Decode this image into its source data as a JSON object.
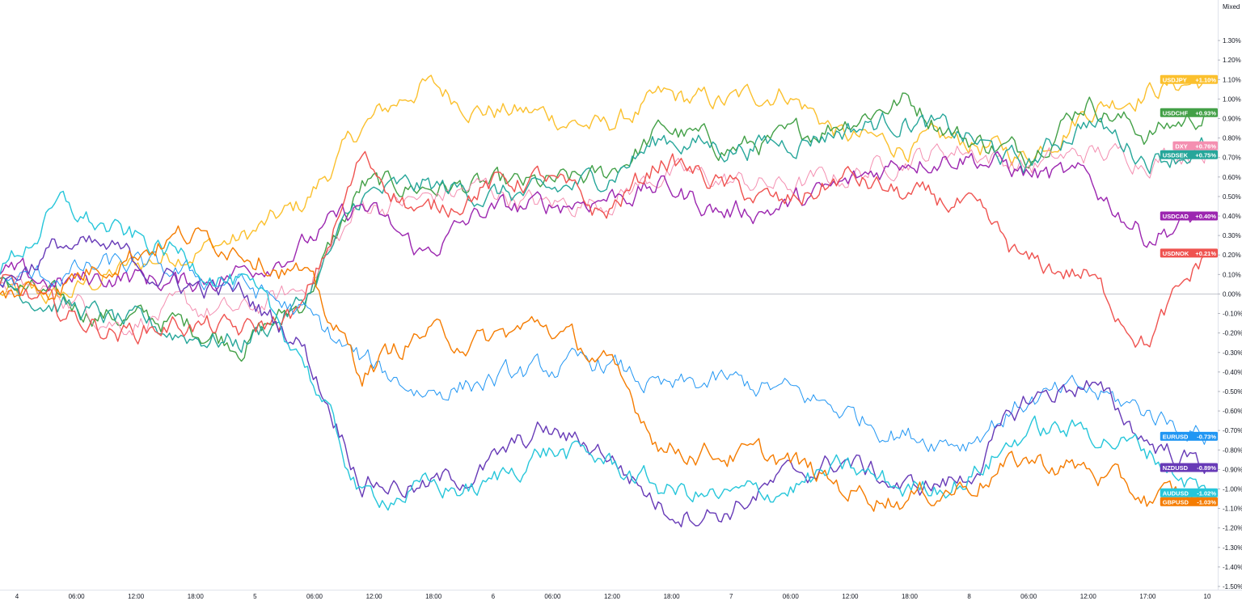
{
  "scale_mode": "Mixed",
  "chart_data": {
    "type": "line",
    "title": "",
    "xlabel": "",
    "ylabel": "",
    "ylim": [
      -1.5,
      1.4
    ],
    "y_ticks": [
      "1.30%",
      "1.20%",
      "1.10%",
      "1.00%",
      "0.90%",
      "0.80%",
      "0.70%",
      "0.60%",
      "0.50%",
      "0.40%",
      "0.30%",
      "0.20%",
      "0.10%",
      "0.00%",
      "-0.10%",
      "-0.20%",
      "-0.30%",
      "-0.40%",
      "-0.50%",
      "-0.60%",
      "-0.70%",
      "-0.80%",
      "-0.90%",
      "-1.00%",
      "-1.10%",
      "-1.20%",
      "-1.30%",
      "-1.40%",
      "-1.50%"
    ],
    "x_ticks": [
      "4",
      "06:00",
      "12:00",
      "18:00",
      "5",
      "06:00",
      "12:00",
      "18:00",
      "6",
      "06:00",
      "12:00",
      "18:00",
      "7",
      "06:00",
      "12:00",
      "18:00",
      "8",
      "06:00",
      "12:00",
      "17:00",
      "10"
    ],
    "zero_line": 0,
    "grid": false,
    "x": [
      "4 00:00",
      "4 06:00",
      "4 12:00",
      "4 18:00",
      "5 00:00",
      "5 06:00",
      "5 12:00",
      "5 18:00",
      "6 00:00",
      "6 06:00",
      "6 12:00",
      "6 18:00",
      "7 00:00",
      "7 06:00",
      "7 12:00",
      "7 18:00",
      "8 00:00",
      "8 06:00",
      "8 12:00",
      "8 17:00",
      "10 00:00"
    ],
    "series": [
      {
        "name": "USDJPY",
        "color": "#FBC02D",
        "last": "+1.10%",
        "values": [
          0.0,
          -0.02,
          0.12,
          0.22,
          0.28,
          0.45,
          0.85,
          1.08,
          0.95,
          0.92,
          0.85,
          1.0,
          0.98,
          1.05,
          0.8,
          0.76,
          0.78,
          0.7,
          0.95,
          1.05,
          1.1
        ]
      },
      {
        "name": "USDCHF",
        "color": "#43A047",
        "last": "+0.93%",
        "values": [
          0.08,
          -0.05,
          -0.12,
          -0.15,
          -0.25,
          -0.05,
          0.55,
          0.55,
          0.55,
          0.55,
          0.6,
          0.85,
          0.75,
          0.78,
          0.9,
          1.0,
          0.8,
          0.72,
          1.0,
          0.82,
          0.93
        ]
      },
      {
        "name": "DXY",
        "color": "#F48FB1",
        "last": "+0.76%",
        "values": [
          0.05,
          0.0,
          -0.15,
          -0.08,
          -0.1,
          0.02,
          0.45,
          0.48,
          0.55,
          0.45,
          0.48,
          0.62,
          0.58,
          0.55,
          0.6,
          0.7,
          0.75,
          0.65,
          0.72,
          0.7,
          0.76
        ]
      },
      {
        "name": "USDSEK",
        "color": "#26A69A",
        "last": "+0.75%",
        "values": [
          0.05,
          -0.05,
          -0.15,
          -0.2,
          -0.25,
          -0.05,
          0.5,
          0.55,
          0.52,
          0.5,
          0.6,
          0.8,
          0.75,
          0.78,
          0.85,
          0.9,
          0.8,
          0.65,
          0.9,
          0.7,
          0.75
        ]
      },
      {
        "name": "USDCAD",
        "color": "#9C27B0",
        "last": "+0.40%",
        "values": [
          0.1,
          0.05,
          0.1,
          0.05,
          0.12,
          0.25,
          0.45,
          0.2,
          0.42,
          0.45,
          0.5,
          0.55,
          0.42,
          0.45,
          0.55,
          0.7,
          0.72,
          0.62,
          0.58,
          0.3,
          0.4
        ]
      },
      {
        "name": "USDNOK",
        "color": "#EF5350",
        "last": "+0.21%",
        "values": [
          0.05,
          -0.1,
          -0.2,
          -0.15,
          -0.2,
          -0.1,
          0.7,
          0.4,
          0.55,
          0.6,
          0.4,
          0.7,
          0.55,
          0.45,
          0.6,
          0.5,
          0.45,
          0.15,
          0.1,
          -0.25,
          0.21
        ]
      },
      {
        "name": "EURUSD",
        "color": "#2196F3",
        "last": "-0.73%",
        "values": [
          0.05,
          0.1,
          0.15,
          0.1,
          0.05,
          -0.1,
          -0.35,
          -0.5,
          -0.45,
          -0.4,
          -0.35,
          -0.5,
          -0.45,
          -0.5,
          -0.6,
          -0.72,
          -0.75,
          -0.55,
          -0.5,
          -0.6,
          -0.73
        ]
      },
      {
        "name": "NZDUSD",
        "color": "#673AB7",
        "last": "-0.89%",
        "values": [
          0.05,
          0.25,
          0.2,
          0.05,
          0.0,
          -0.25,
          -0.95,
          -1.0,
          -0.9,
          -0.7,
          -0.8,
          -1.1,
          -1.12,
          -0.95,
          -0.85,
          -1.0,
          -0.95,
          -0.55,
          -0.45,
          -0.75,
          -0.89
        ]
      },
      {
        "name": "AUDUSD",
        "color": "#26C6DA",
        "last": "-1.02%",
        "values": [
          0.1,
          0.45,
          0.3,
          0.2,
          0.05,
          -0.3,
          -1.05,
          -1.0,
          -1.0,
          -0.8,
          -0.85,
          -1.0,
          -1.05,
          -1.0,
          -0.9,
          -1.0,
          -0.95,
          -0.7,
          -0.7,
          -0.8,
          -1.02
        ]
      },
      {
        "name": "GBPUSD",
        "color": "#F57C00",
        "last": "-1.03%",
        "values": [
          0.0,
          0.05,
          0.2,
          0.3,
          0.25,
          0.1,
          -0.4,
          -0.2,
          -0.25,
          -0.15,
          -0.35,
          -0.78,
          -0.82,
          -0.85,
          -1.0,
          -1.05,
          -0.98,
          -0.85,
          -0.9,
          -1.05,
          -1.03
        ]
      }
    ]
  }
}
